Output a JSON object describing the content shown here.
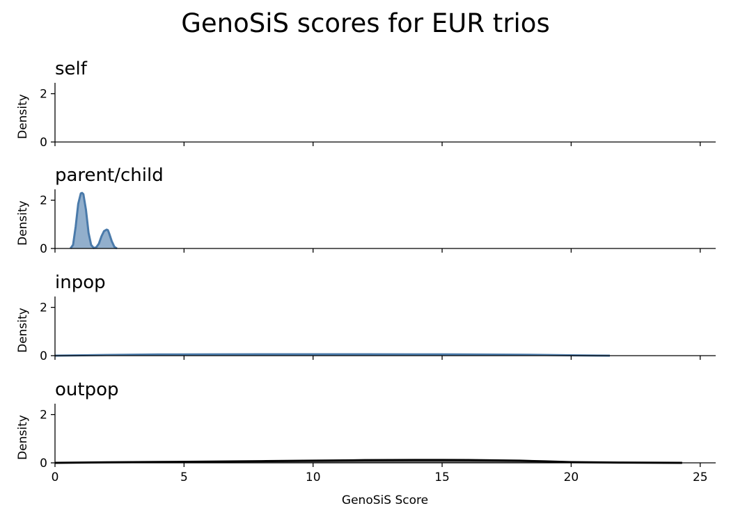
{
  "chart_data": {
    "type": "area",
    "title": "GenoSiS scores for EUR trios",
    "xlabel": "GenoSiS Score",
    "ylabel": "Density",
    "xlim": [
      0,
      25.6
    ],
    "ylim": [
      0,
      2.45
    ],
    "xticks": [
      0,
      5,
      10,
      15,
      20,
      25
    ],
    "yticks": [
      0,
      2
    ],
    "grid": false,
    "panels": [
      {
        "name": "self",
        "color": null,
        "x": [],
        "y": []
      },
      {
        "name": "parent/child",
        "color": "#4a7aaa",
        "x": [
          0.6,
          0.7,
          0.8,
          0.9,
          1.0,
          1.05,
          1.1,
          1.2,
          1.3,
          1.4,
          1.5,
          1.6,
          1.7,
          1.8,
          1.9,
          2.0,
          2.05,
          2.1,
          2.2,
          2.3,
          2.4
        ],
        "y": [
          0.0,
          0.15,
          0.9,
          1.85,
          2.28,
          2.3,
          2.25,
          1.6,
          0.65,
          0.15,
          0.02,
          0.05,
          0.2,
          0.5,
          0.72,
          0.78,
          0.76,
          0.62,
          0.3,
          0.07,
          0.0
        ]
      },
      {
        "name": "inpop",
        "color": "#4a7aaa",
        "x": [
          0,
          2,
          4,
          6,
          8,
          10,
          12,
          14,
          16,
          18,
          19,
          20,
          21,
          21.5
        ],
        "y": [
          0.0,
          0.03,
          0.05,
          0.055,
          0.058,
          0.058,
          0.057,
          0.055,
          0.05,
          0.04,
          0.03,
          0.015,
          0.005,
          0.0
        ]
      },
      {
        "name": "outpop",
        "color": "#000000",
        "x": [
          0,
          2,
          4,
          6,
          8,
          10,
          12,
          14,
          15,
          16,
          18,
          19,
          20,
          22,
          24.3
        ],
        "y": [
          0.0,
          0.02,
          0.035,
          0.05,
          0.07,
          0.09,
          0.11,
          0.12,
          0.12,
          0.115,
          0.09,
          0.06,
          0.03,
          0.01,
          0.0
        ]
      }
    ]
  }
}
